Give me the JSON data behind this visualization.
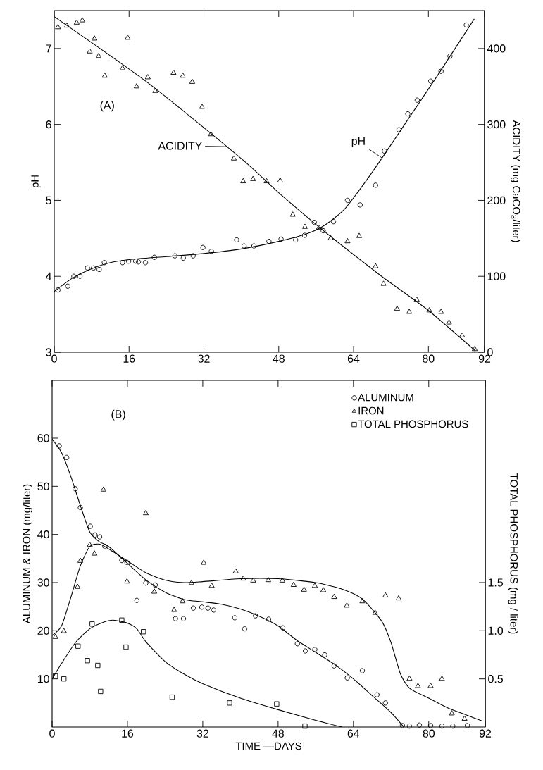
{
  "chart_data": [
    {
      "type": "scatter",
      "ylabel": "pH",
      "y2label": "ACIDITY (mg CaCO$_{3}$/liter)",
      "annotations": [
        "(A)"
      ],
      "xlim": [
        0,
        92
      ],
      "xticks": [
        0,
        16,
        32,
        48,
        64,
        80,
        92
      ],
      "ylim": [
        3,
        7.5
      ],
      "yticks": [
        3,
        4,
        5,
        6,
        7
      ],
      "y2lim": [
        0,
        450
      ],
      "y2ticks": [
        0,
        100,
        200,
        300,
        400
      ],
      "series": [
        {
          "marker": "circle",
          "color": "#000000",
          "x": [
            0.8,
            2.9,
            4.2,
            5.5,
            7.1,
            8.4,
            9.6,
            10.7,
            14.6,
            15.9,
            17.4,
            18.0,
            19.5,
            21.4,
            25.8,
            27.6,
            29.7,
            31.8,
            33.6,
            39.0,
            40.6,
            42.7,
            45.9,
            48.5,
            51.6,
            53.5,
            55.6,
            57.5,
            59.7,
            62.7,
            65.4,
            68.7,
            70.6,
            73.7,
            75.6,
            77.6,
            80.5,
            82.7,
            84.6,
            88.1
          ],
          "values": [
            3.82,
            3.87,
            4.0,
            4.0,
            4.11,
            4.11,
            4.09,
            4.18,
            4.18,
            4.2,
            4.2,
            4.19,
            4.18,
            4.25,
            4.27,
            4.24,
            4.27,
            4.38,
            4.33,
            4.48,
            4.4,
            4.4,
            4.46,
            4.49,
            4.48,
            4.54,
            4.71,
            4.6,
            4.72,
            5.0,
            4.94,
            5.2,
            5.65,
            5.93,
            6.14,
            6.32,
            6.57,
            6.7,
            6.9,
            7.31
          ]
        },
        {
          "name": "pH",
          "type": "line",
          "marker": "none",
          "color": "#000000",
          "x": [
            0,
            4,
            8,
            12,
            16,
            24,
            32,
            40,
            48,
            54,
            58,
            62,
            66,
            70,
            76,
            82,
            89.8
          ],
          "values": [
            3.8,
            3.98,
            4.1,
            4.18,
            4.22,
            4.26,
            4.3,
            4.36,
            4.46,
            4.56,
            4.68,
            4.88,
            5.2,
            5.55,
            6.1,
            6.65,
            7.39
          ]
        },
        {
          "marker": "triangle",
          "axis": "y2",
          "color": "#000000",
          "x": [
            0.8,
            2.7,
            4.8,
            6.0,
            7.6,
            8.6,
            9.5,
            10.8,
            14.6,
            15.7,
            17.6,
            20.0,
            21.6,
            25.5,
            27.5,
            29.5,
            31.6,
            33.5,
            38.4,
            40.4,
            42.5,
            45.4,
            48.3,
            51.0,
            53.6,
            56.6,
            59.1,
            62.7,
            65.2,
            68.7,
            70.4,
            73.3,
            75.9,
            77.5,
            80.2,
            82.7,
            84.4,
            87.2,
            89.9
          ],
          "values": [
            428,
            430,
            434,
            437,
            396,
            413,
            390,
            364,
            374,
            414,
            350,
            362,
            344,
            368,
            364,
            356,
            323,
            287,
            255,
            225,
            228,
            225,
            226,
            181,
            165,
            164,
            150,
            146,
            153,
            113,
            90,
            57,
            53,
            69,
            55,
            53,
            39,
            22,
            4
          ]
        },
        {
          "name": "ACIDITY",
          "type": "line",
          "marker": "none",
          "axis": "y2",
          "color": "#000000",
          "x": [
            0,
            20,
            40,
            48,
            56,
            60,
            70,
            80,
            90
          ],
          "values": [
            442,
            355,
            255,
            210,
            168,
            148,
            100,
            55,
            2
          ]
        }
      ]
    },
    {
      "type": "scatter",
      "xlabel": "TIME —DAYS",
      "ylabel": "ALUMINUM & IRON (mg/liter)",
      "y2label": "TOTAL PHOSPHORUS (mg / liter)",
      "annotations": [
        "(B)"
      ],
      "legend": "top right",
      "xlim": [
        0,
        92
      ],
      "xticks": [
        0,
        16,
        32,
        48,
        64,
        80,
        92
      ],
      "ylim": [
        0,
        72
      ],
      "yticks": [
        10,
        20,
        30,
        40,
        50,
        60
      ],
      "y2lim": [
        0,
        3.6
      ],
      "y2ticks": [
        0.5,
        {
          "value": 1,
          "label": "1.0"
        },
        1.5
      ],
      "series": [
        {
          "name": "ALUMINUM",
          "marker": "circle",
          "color": "#000000",
          "x": [
            1.5,
            3.1,
            4.9,
            6.0,
            8.1,
            9.1,
            10.1,
            11.2,
            14.8,
            15.9,
            18.0,
            19.9,
            21.9,
            26.2,
            27.9,
            30.0,
            31.8,
            33.1,
            34.3,
            38.8,
            40.9,
            43.2,
            46.0,
            49.0,
            52.1,
            53.8,
            55.8,
            57.9,
            59.9,
            62.7,
            65.9,
            69.0,
            70.8,
            74.4,
            75.9,
            78.0,
            80.4,
            82.8,
            85.1,
            88.2
          ],
          "values": [
            58.4,
            56.0,
            49.5,
            45.6,
            41.7,
            39.9,
            39.5,
            37.5,
            34.6,
            34.2,
            26.3,
            29.9,
            29.5,
            22.5,
            22.5,
            24.7,
            24.9,
            24.7,
            24.3,
            22.7,
            20.4,
            23.1,
            22.4,
            20.6,
            17.3,
            15.8,
            16.1,
            15.0,
            12.7,
            10.2,
            11.7,
            6.7,
            5.0,
            0.3,
            0.2,
            0.4,
            0.3,
            0.2,
            0.2,
            0.3
          ]
        },
        {
          "type": "line",
          "marker": "none",
          "color": "#000000",
          "x": [
            0,
            2,
            4,
            6,
            8,
            10,
            12,
            16,
            20,
            24,
            28,
            32,
            36,
            40,
            44,
            48,
            52,
            56,
            60,
            64,
            68,
            72,
            74.7
          ],
          "values": [
            59.8,
            57,
            52,
            46,
            40.5,
            38.5,
            37.5,
            34,
            30.5,
            28,
            26.5,
            26,
            25.5,
            24.5,
            23,
            21,
            18,
            15.5,
            13,
            10,
            6.5,
            3,
            0
          ]
        },
        {
          "name": "IRON",
          "marker": "triangle",
          "color": "#000000",
          "x": [
            0.7,
            2.5,
            5.4,
            6.0,
            8.0,
            9.0,
            10.9,
            15.9,
            19.9,
            21.7,
            25.9,
            27.7,
            29.6,
            32.2,
            33.9,
            39.0,
            40.6,
            42.7,
            45.9,
            48.9,
            51.3,
            53.5,
            55.8,
            57.6,
            59.9,
            62.6,
            65.9,
            68.6,
            70.8,
            73.6,
            75.9,
            77.7,
            80.4,
            82.8,
            84.9,
            87.6
          ],
          "values": [
            18.7,
            19.9,
            29.1,
            34.5,
            37.8,
            36.0,
            49.3,
            30.2,
            44.4,
            28.1,
            24.3,
            26.1,
            29.9,
            34.1,
            29.3,
            32.3,
            30.8,
            30.4,
            30.5,
            30.4,
            29.5,
            28.5,
            29.3,
            28.4,
            27.0,
            25.2,
            26.1,
            23.7,
            27.3,
            26.7,
            10.0,
            8.5,
            8.5,
            10.0,
            2.8,
            1.7
          ]
        },
        {
          "type": "line",
          "marker": "none",
          "color": "#000000",
          "x": [
            0,
            2,
            4,
            6,
            8,
            10,
            12,
            16,
            20,
            24,
            28,
            32,
            40,
            48,
            56,
            62,
            66,
            70,
            72,
            74,
            76,
            80,
            84,
            88,
            91.2
          ],
          "values": [
            19,
            21,
            27,
            33.5,
            37.5,
            38,
            37,
            34.5,
            32,
            30.5,
            30,
            30.2,
            30.8,
            30.8,
            30,
            28.5,
            26.5,
            22,
            17.5,
            11,
            8,
            6,
            4,
            2.5,
            1.3
          ]
        },
        {
          "name": "TOTAL PHOSPHORUS",
          "marker": "square",
          "axis": "y2",
          "color": "#000000",
          "x": [
            0.7,
            2.5,
            5.5,
            7.5,
            8.5,
            9.7,
            10.3,
            14.8,
            15.7,
            19.4,
            25.5,
            37.7,
            47.7,
            53.7
          ],
          "values": [
            0.53,
            0.5,
            0.84,
            0.69,
            1.07,
            0.64,
            0.37,
            1.11,
            0.83,
            0.99,
            0.31,
            0.25,
            0.24,
            0.01
          ]
        },
        {
          "type": "line",
          "marker": "none",
          "axis": "y2",
          "color": "#000000",
          "x": [
            0,
            2,
            5,
            8,
            11,
            13,
            16,
            18,
            20,
            24,
            28,
            32,
            40,
            48,
            56,
            61.6
          ],
          "values": [
            0.5,
            0.66,
            0.88,
            1.02,
            1.09,
            1.11,
            1.08,
            1.02,
            0.88,
            0.68,
            0.55,
            0.45,
            0.3,
            0.18,
            0.07,
            0
          ]
        }
      ]
    }
  ]
}
